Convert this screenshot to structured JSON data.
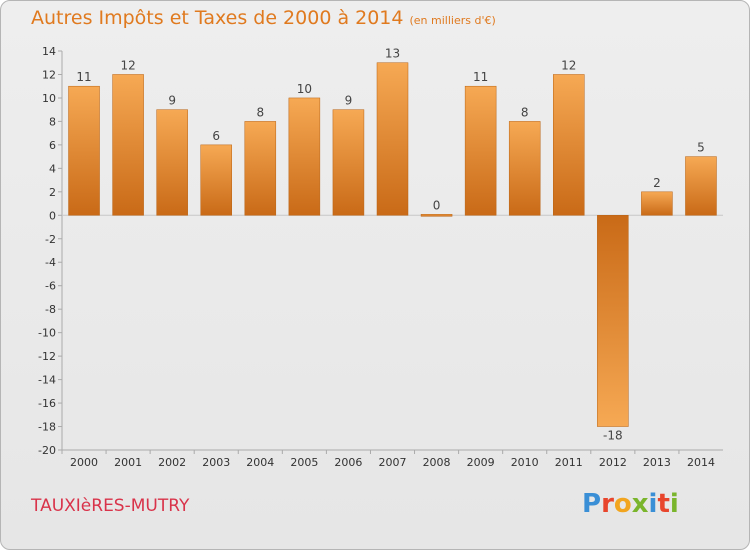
{
  "chart_data": {
    "type": "bar",
    "title": "Autres Impôts et Taxes de 2000 à 2014",
    "subtitle": "(en milliers d'€)",
    "categories": [
      "2000",
      "2001",
      "2002",
      "2003",
      "2004",
      "2005",
      "2006",
      "2007",
      "2008",
      "2009",
      "2010",
      "2011",
      "2012",
      "2013",
      "2014"
    ],
    "values": [
      11,
      12,
      9,
      6,
      8,
      10,
      9,
      13,
      0,
      11,
      8,
      12,
      -18,
      2,
      5
    ],
    "value_labels": [
      "11",
      "12",
      "9",
      "6",
      "8",
      "10",
      "9",
      "13",
      "0",
      "11",
      "8",
      "12",
      "-18",
      "2",
      "5"
    ],
    "y_ticks": [
      "14",
      "12",
      "10",
      "8",
      "6",
      "4",
      "2",
      "0",
      "-2",
      "-4",
      "-6",
      "-8",
      "-10",
      "-12",
      "-14",
      "-16",
      "-18",
      "-20"
    ],
    "ylim": [
      -20,
      14
    ],
    "xlabel": "",
    "ylabel": "",
    "grid": false,
    "legend": "none",
    "bar_color": "#f0963a"
  },
  "footer": {
    "city": "TAUXIèRES-MUTRY",
    "brand_letters": [
      "P",
      "r",
      "o",
      "x",
      "i",
      "t",
      "i"
    ]
  },
  "colors": {
    "title": "#e07a1f",
    "city": "#d9334a",
    "brand": [
      "#3a8fd6",
      "#e8452c",
      "#f2a51f",
      "#7ab52c",
      "#3a8fd6",
      "#e8452c",
      "#7ab52c"
    ]
  }
}
